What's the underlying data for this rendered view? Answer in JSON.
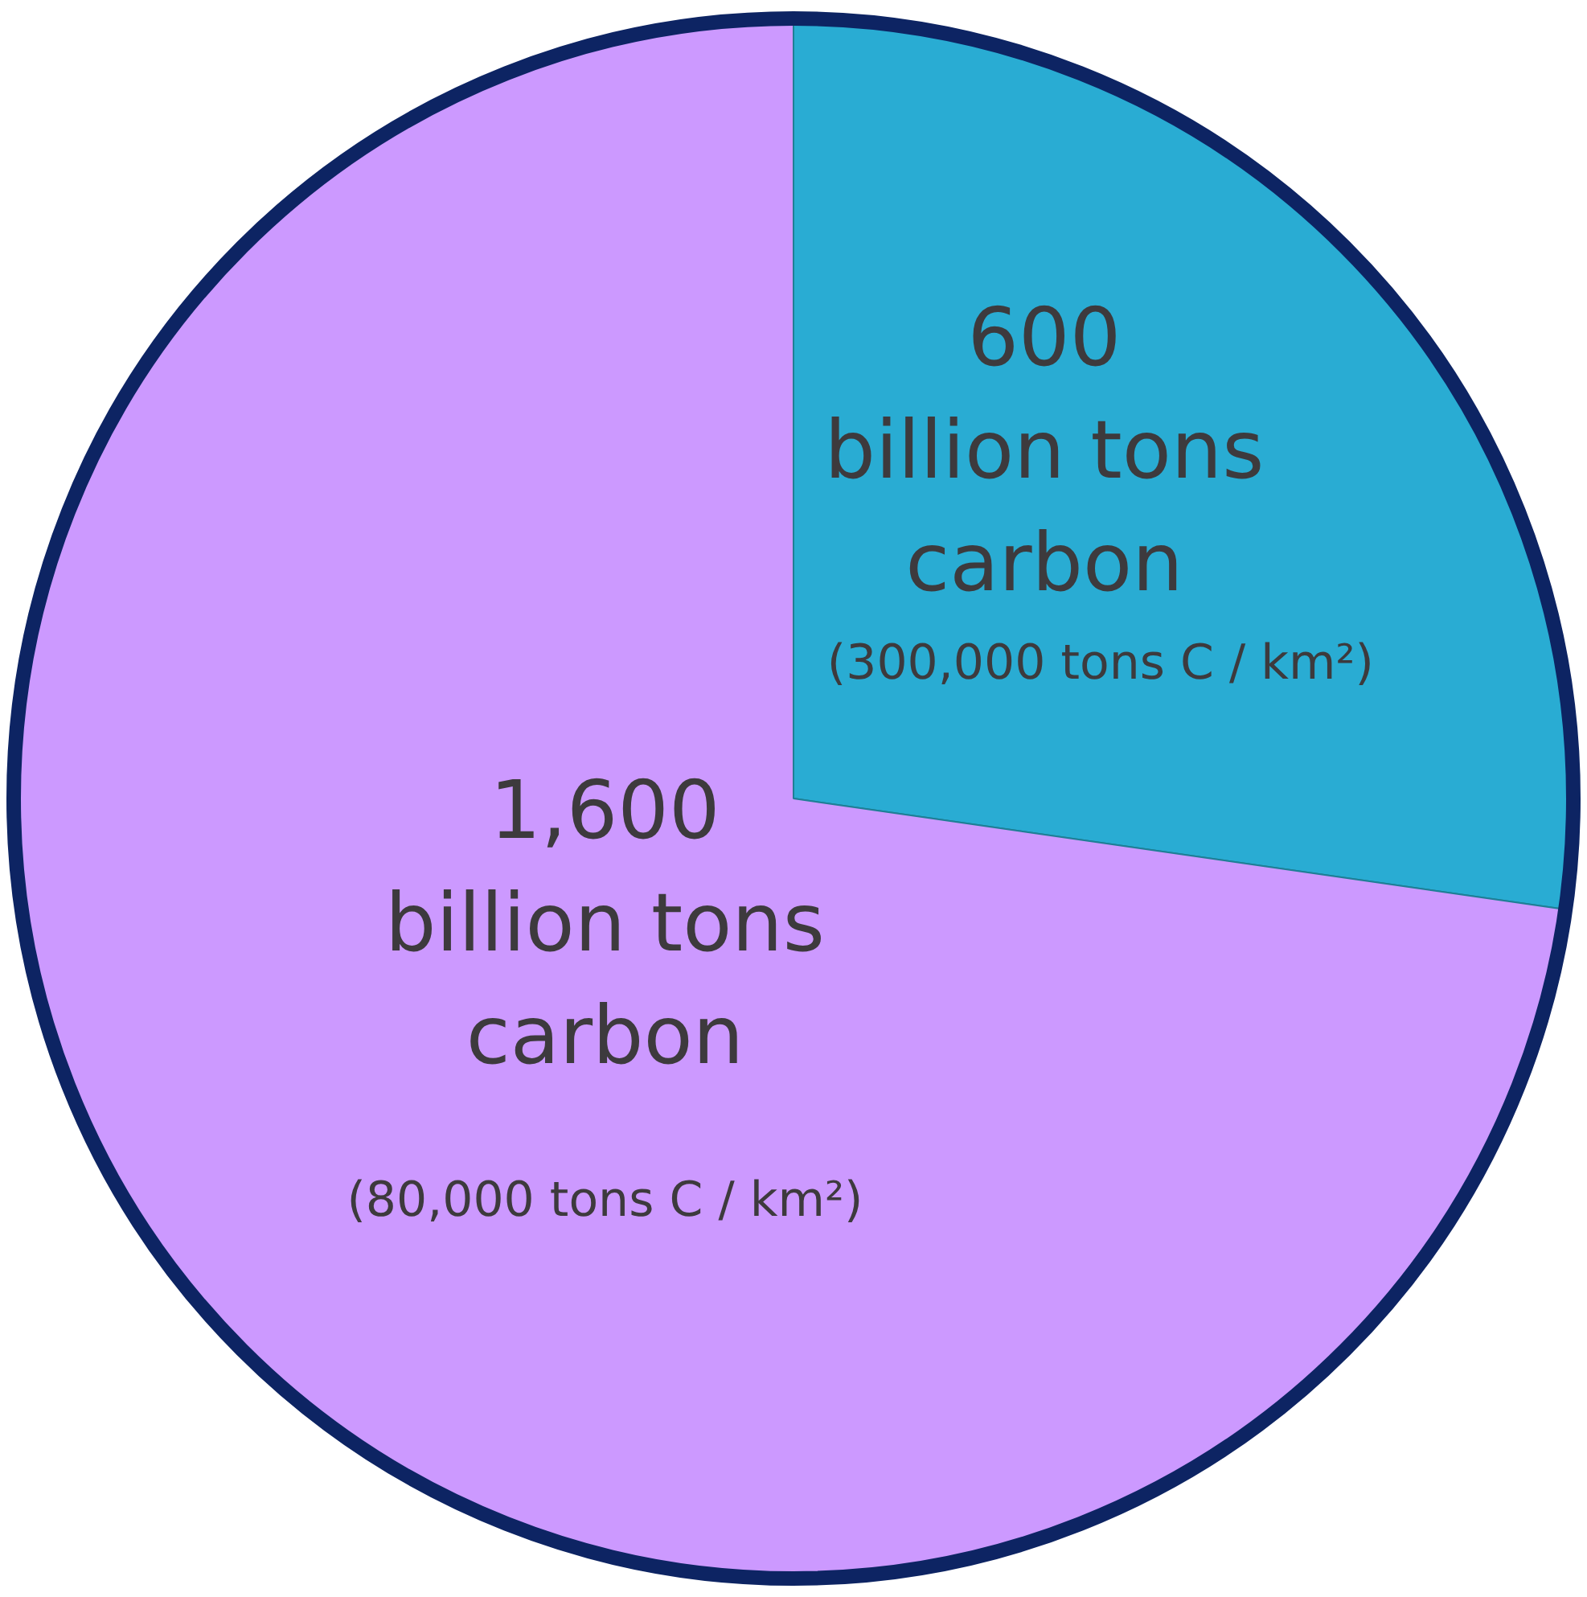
{
  "chart_data": {
    "type": "pie",
    "categories": [
      null,
      null
    ],
    "values": [
      600,
      1600
    ],
    "colors": [
      "#29acd3",
      "#cc99ff"
    ],
    "value_labels": [
      "600",
      "1,600"
    ],
    "annotations": [
      "billion tons carbon",
      "(300,000 tons C / km²)",
      "billion tons carbon",
      "(80,000 tons C / km²)"
    ],
    "legend": false
  }
}
